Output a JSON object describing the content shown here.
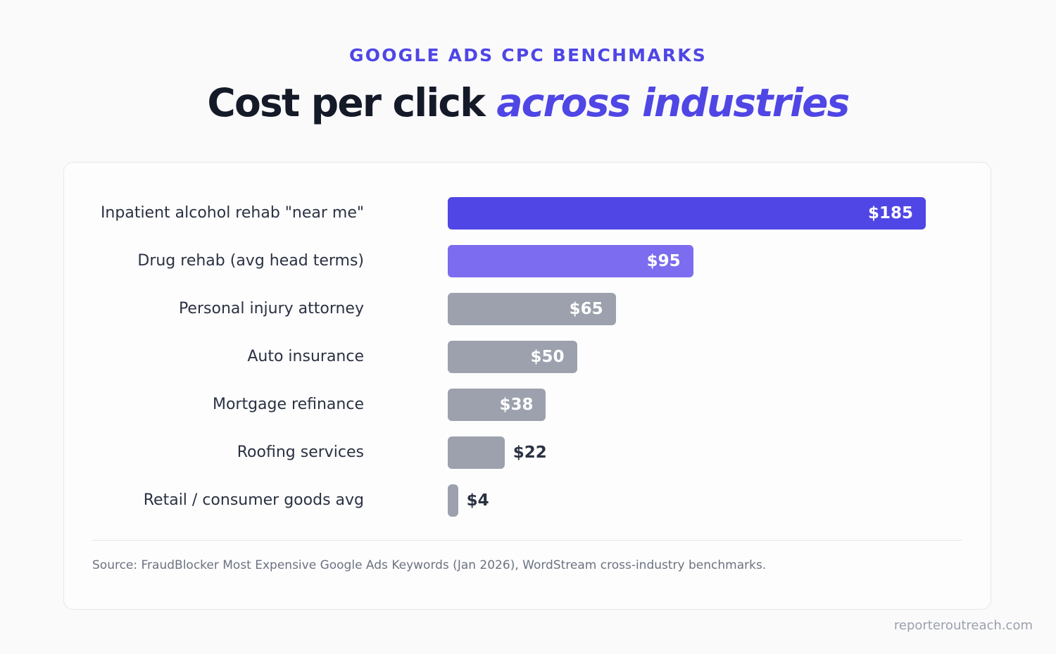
{
  "header": {
    "eyebrow": "GOOGLE ADS CPC BENCHMARKS",
    "title_main": "Cost per click",
    "title_accent": "across industries"
  },
  "chart_data": {
    "type": "bar",
    "orientation": "horizontal",
    "categories": [
      "Inpatient alcohol rehab \"near me\"",
      "Drug rehab (avg head terms)",
      "Personal injury attorney",
      "Auto insurance",
      "Mortgage refinance",
      "Roofing services",
      "Retail / consumer goods avg"
    ],
    "values": [
      185,
      95,
      65,
      50,
      38,
      22,
      4
    ],
    "value_labels": [
      "$185",
      "$95",
      "$65",
      "$50",
      "$38",
      "$22",
      "$4"
    ],
    "bar_colors": [
      "#4f46e5",
      "#7b6cf0",
      "#9ca1ad",
      "#9ca1ad",
      "#9ca1ad",
      "#9ca1ad",
      "#9ca1ad"
    ],
    "xlim": [
      0,
      185
    ],
    "grid": false,
    "legend": "none"
  },
  "footer": {
    "source": "Source: FraudBlocker Most Expensive Google Ads Keywords (Jan 2026), WordStream cross-industry benchmarks.",
    "watermark": "reporteroutreach.com"
  }
}
